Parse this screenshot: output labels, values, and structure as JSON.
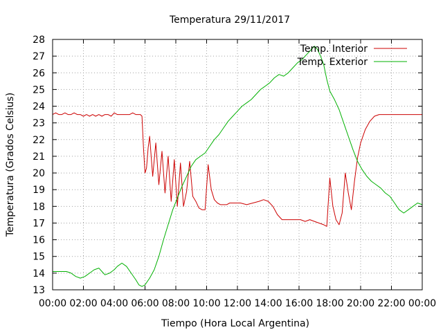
{
  "chart_data": {
    "type": "line",
    "title": "Temperatura 29/11/2017",
    "xlabel": "Tiempo (Hora Local Argentina)",
    "ylabel": "Temperatura (Grados Celsius)",
    "xlim": [
      0,
      24
    ],
    "ylim": [
      13,
      28
    ],
    "grid": true,
    "legend_position": "top-right",
    "x_ticks": [
      {
        "value": 0,
        "label": "00:00"
      },
      {
        "value": 2,
        "label": "02:00"
      },
      {
        "value": 4,
        "label": "04:00"
      },
      {
        "value": 6,
        "label": "06:00"
      },
      {
        "value": 8,
        "label": "08:00"
      },
      {
        "value": 10,
        "label": "10:00"
      },
      {
        "value": 12,
        "label": "12:00"
      },
      {
        "value": 14,
        "label": "14:00"
      },
      {
        "value": 16,
        "label": "16:00"
      },
      {
        "value": 18,
        "label": "18:00"
      },
      {
        "value": 20,
        "label": "20:00"
      },
      {
        "value": 22,
        "label": "22:00"
      },
      {
        "value": 24,
        "label": "00:00"
      }
    ],
    "y_ticks": [
      13,
      14,
      15,
      16,
      17,
      18,
      19,
      20,
      21,
      22,
      23,
      24,
      25,
      26,
      27,
      28
    ],
    "series": [
      {
        "name": "Temp. Interior",
        "color": "#cc0000",
        "x": [
          0.0,
          0.2,
          0.4,
          0.6,
          0.8,
          1.0,
          1.2,
          1.4,
          1.6,
          1.8,
          2.0,
          2.2,
          2.4,
          2.6,
          2.8,
          3.0,
          3.2,
          3.4,
          3.6,
          3.8,
          4.0,
          4.2,
          4.4,
          4.6,
          4.8,
          5.0,
          5.2,
          5.4,
          5.6,
          5.7,
          5.8,
          5.9,
          6.0,
          6.1,
          6.2,
          6.3,
          6.5,
          6.7,
          6.9,
          7.1,
          7.3,
          7.5,
          7.7,
          7.9,
          8.1,
          8.3,
          8.5,
          8.7,
          8.9,
          9.1,
          9.3,
          9.5,
          9.7,
          9.9,
          10.1,
          10.3,
          10.5,
          10.7,
          10.9,
          11.1,
          11.3,
          11.5,
          11.8,
          12.2,
          12.6,
          13.0,
          13.4,
          13.7,
          14.0,
          14.3,
          14.6,
          14.9,
          15.2,
          15.5,
          15.8,
          16.1,
          16.4,
          16.7,
          17.0,
          17.3,
          17.6,
          17.8,
          18.0,
          18.2,
          18.4,
          18.6,
          18.8,
          19.0,
          19.2,
          19.4,
          19.6,
          19.8,
          20.0,
          20.3,
          20.6,
          20.9,
          21.2,
          21.5,
          22.0,
          22.5,
          23.0,
          23.5,
          24.0
        ],
        "y": [
          23.5,
          23.6,
          23.5,
          23.5,
          23.6,
          23.5,
          23.5,
          23.6,
          23.5,
          23.5,
          23.4,
          23.5,
          23.4,
          23.5,
          23.4,
          23.5,
          23.4,
          23.5,
          23.5,
          23.4,
          23.6,
          23.5,
          23.5,
          23.5,
          23.5,
          23.5,
          23.6,
          23.5,
          23.5,
          23.5,
          23.4,
          21.5,
          20.0,
          20.3,
          21.5,
          22.2,
          19.8,
          21.8,
          19.3,
          21.3,
          18.8,
          21.0,
          18.3,
          20.8,
          18.0,
          20.6,
          18.0,
          18.9,
          20.7,
          18.6,
          18.3,
          17.9,
          17.8,
          17.8,
          20.5,
          19.0,
          18.4,
          18.2,
          18.1,
          18.1,
          18.1,
          18.2,
          18.2,
          18.2,
          18.1,
          18.2,
          18.3,
          18.4,
          18.3,
          18.0,
          17.5,
          17.2,
          17.2,
          17.2,
          17.2,
          17.2,
          17.1,
          17.2,
          17.1,
          17.0,
          16.9,
          16.8,
          19.7,
          18.0,
          17.2,
          16.9,
          17.6,
          20.0,
          18.8,
          17.8,
          19.5,
          20.9,
          21.8,
          22.6,
          23.1,
          23.4,
          23.5,
          23.5,
          23.5,
          23.5,
          23.5,
          23.5,
          23.5
        ]
      },
      {
        "name": "Temp. Exterior",
        "color": "#00b000",
        "x": [
          0.0,
          0.3,
          0.6,
          0.9,
          1.2,
          1.5,
          1.8,
          2.1,
          2.4,
          2.7,
          3.0,
          3.2,
          3.4,
          3.7,
          4.0,
          4.2,
          4.5,
          4.8,
          5.1,
          5.4,
          5.6,
          5.8,
          6.0,
          6.3,
          6.6,
          6.9,
          7.2,
          7.5,
          7.8,
          8.1,
          8.4,
          8.7,
          9.0,
          9.3,
          9.6,
          9.9,
          10.2,
          10.5,
          10.8,
          11.1,
          11.4,
          11.7,
          12.0,
          12.3,
          12.6,
          12.9,
          13.2,
          13.5,
          13.8,
          14.1,
          14.4,
          14.7,
          15.0,
          15.3,
          15.6,
          15.9,
          16.2,
          16.5,
          16.8,
          17.0,
          17.2,
          17.4,
          17.6,
          17.8,
          18.0,
          18.3,
          18.6,
          18.9,
          19.2,
          19.5,
          19.8,
          20.1,
          20.4,
          20.7,
          21.0,
          21.3,
          21.6,
          21.9,
          22.2,
          22.5,
          22.8,
          23.1,
          23.4,
          23.7,
          24.0
        ],
        "y": [
          14.1,
          14.1,
          14.1,
          14.1,
          14.0,
          13.8,
          13.7,
          13.8,
          14.0,
          14.2,
          14.3,
          14.1,
          13.9,
          14.0,
          14.2,
          14.4,
          14.6,
          14.4,
          14.0,
          13.6,
          13.3,
          13.2,
          13.3,
          13.7,
          14.2,
          15.0,
          16.0,
          16.9,
          17.8,
          18.5,
          19.2,
          19.8,
          20.4,
          20.8,
          21.0,
          21.2,
          21.6,
          22.0,
          22.3,
          22.7,
          23.1,
          23.4,
          23.7,
          24.0,
          24.2,
          24.4,
          24.7,
          25.0,
          25.2,
          25.4,
          25.7,
          25.9,
          25.8,
          26.0,
          26.3,
          26.6,
          26.8,
          27.1,
          27.4,
          27.6,
          27.4,
          27.0,
          26.5,
          25.6,
          24.9,
          24.4,
          23.8,
          23.0,
          22.2,
          21.4,
          20.7,
          20.2,
          19.8,
          19.5,
          19.3,
          19.1,
          18.8,
          18.6,
          18.2,
          17.8,
          17.6,
          17.8,
          18.0,
          18.2,
          18.1
        ]
      }
    ]
  }
}
